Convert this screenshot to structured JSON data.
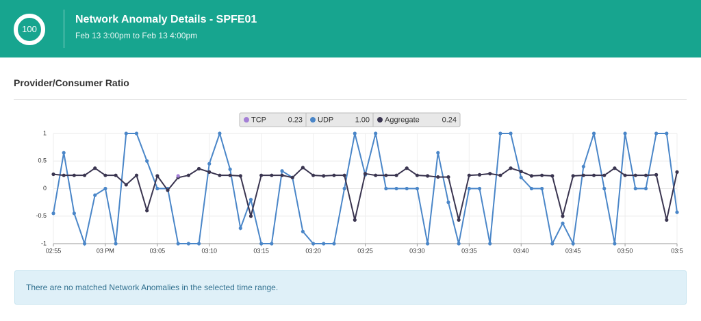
{
  "header": {
    "score": "100",
    "title": "Network Anomaly Details - SPFE01",
    "subtitle": "Feb 13 3:00pm to Feb 13 4:00pm"
  },
  "section_title": "Provider/Consumer Ratio",
  "chart_data": {
    "type": "line",
    "categories": [
      "02:55",
      null,
      null,
      null,
      null,
      "03 PM",
      null,
      null,
      null,
      null,
      "03:05",
      null,
      null,
      null,
      null,
      "03:10",
      null,
      null,
      null,
      null,
      "03:15",
      null,
      null,
      null,
      null,
      "03:20",
      null,
      null,
      null,
      null,
      "03:25",
      null,
      null,
      null,
      null,
      "03:30",
      null,
      null,
      null,
      null,
      "03:35",
      null,
      null,
      null,
      null,
      "03:40",
      null,
      null,
      null,
      null,
      "03:45",
      null,
      null,
      null,
      null,
      "03:50",
      null,
      null,
      null,
      null,
      "03:5"
    ],
    "series": [
      {
        "name": "TCP",
        "legend_value": "0.23",
        "color": "#a47fd6",
        "values": [
          null,
          null,
          null,
          null,
          null,
          null,
          null,
          null,
          null,
          null,
          null,
          null,
          0.23,
          null,
          null,
          null,
          null,
          null,
          null,
          null,
          null,
          null,
          null,
          null,
          null,
          null,
          null,
          null,
          null,
          null,
          null,
          null,
          null,
          null,
          null,
          null,
          null,
          null,
          null,
          null,
          null,
          null,
          null,
          null,
          null,
          null,
          null,
          null,
          null,
          null,
          null,
          null,
          null,
          null,
          null,
          null,
          null,
          null,
          null,
          null,
          null
        ]
      },
      {
        "name": "UDP",
        "legend_value": "1.00",
        "color": "#4a86c8",
        "values": [
          -0.45,
          0.65,
          -0.45,
          -1,
          -0.12,
          0,
          -1,
          1,
          1,
          0.5,
          0,
          0,
          -1,
          -1,
          -1,
          0.45,
          1,
          0.35,
          -0.72,
          -0.2,
          -1,
          -1,
          0.32,
          0.2,
          -0.78,
          -1,
          -1,
          -1,
          0,
          1,
          0.25,
          1,
          0,
          0,
          0,
          0,
          -1,
          0.65,
          -0.25,
          -1,
          0,
          0,
          -1,
          1,
          1,
          0.2,
          0,
          0,
          -1,
          -0.63,
          -1,
          0.4,
          1,
          0,
          -1,
          1,
          0,
          0,
          1,
          1,
          -0.43
        ]
      },
      {
        "name": "Aggregate",
        "legend_value": "0.24",
        "color": "#3a3550",
        "values": [
          0.26,
          0.24,
          0.24,
          0.24,
          0.37,
          0.24,
          0.24,
          0.07,
          0.24,
          -0.4,
          0.23,
          -0.03,
          0.2,
          0.24,
          0.36,
          0.3,
          0.24,
          0.24,
          0.23,
          -0.5,
          0.24,
          0.24,
          0.24,
          0.2,
          0.38,
          0.24,
          0.23,
          0.24,
          0.24,
          -0.57,
          0.27,
          0.24,
          0.24,
          0.24,
          0.37,
          0.24,
          0.23,
          0.21,
          0.21,
          -0.57,
          0.24,
          0.25,
          0.27,
          0.24,
          0.37,
          0.31,
          0.23,
          0.24,
          0.23,
          -0.5,
          0.23,
          0.24,
          0.24,
          0.24,
          0.37,
          0.24,
          0.24,
          0.24,
          0.25,
          -0.57,
          0.3
        ]
      }
    ],
    "ylim": [
      -1,
      1
    ],
    "yticks": [
      1,
      0.5,
      0,
      -0.5,
      -1
    ],
    "grid": true
  },
  "alert": "There are no matched Network Anomalies in the selected time range."
}
